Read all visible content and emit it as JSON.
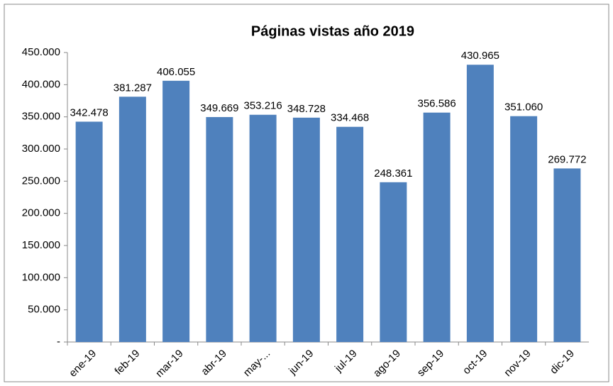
{
  "chart_data": {
    "type": "bar",
    "title": "Páginas vistas año 2019",
    "categories": [
      "ene-19",
      "feb-19",
      "mar-19",
      "abr-19",
      "may-...",
      "jun-19",
      "jul-19",
      "ago-19",
      "sep-19",
      "oct-19",
      "nov-19",
      "dic-19"
    ],
    "values": [
      342478,
      381287,
      406055,
      349669,
      353216,
      348728,
      334468,
      248361,
      356586,
      430965,
      351060,
      269772
    ],
    "value_labels": [
      "342.478",
      "381.287",
      "406.055",
      "349.669",
      "353.216",
      "348.728",
      "334.468",
      "248.361",
      "356.586",
      "430.965",
      "351.060",
      "269.772"
    ],
    "color": "#4f81bd",
    "ylim": [
      0,
      450000
    ],
    "yticks": [
      {
        "value": 0,
        "label": "-"
      },
      {
        "value": 50000,
        "label": "50.000"
      },
      {
        "value": 100000,
        "label": "100.000"
      },
      {
        "value": 150000,
        "label": "150.000"
      },
      {
        "value": 200000,
        "label": "200.000"
      },
      {
        "value": 250000,
        "label": "250.000"
      },
      {
        "value": 300000,
        "label": "300.000"
      },
      {
        "value": 350000,
        "label": "350.000"
      },
      {
        "value": 400000,
        "label": "400.000"
      },
      {
        "value": 450000,
        "label": "450.000"
      }
    ],
    "grid": false
  }
}
